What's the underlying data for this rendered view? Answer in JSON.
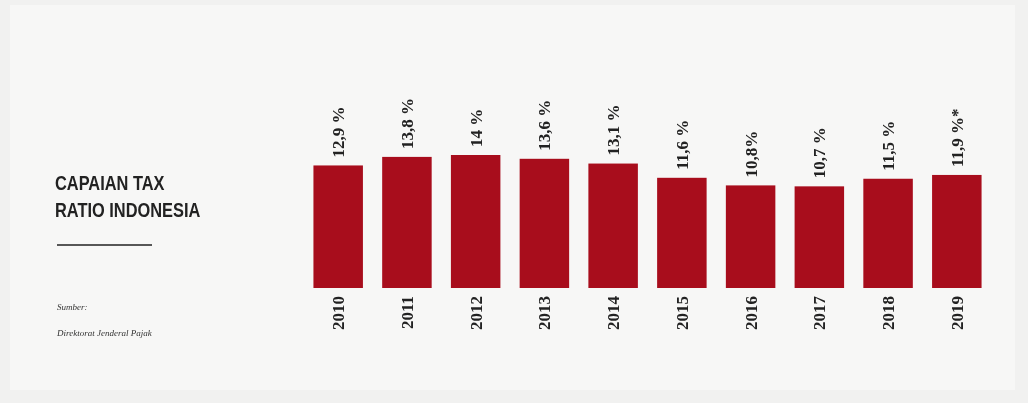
{
  "chart_data": {
    "type": "bar",
    "title": "CAPAIAN TAX RATIO INDONESIA",
    "annotations": [
      "Sumber:",
      "Direktorat Jenderal Pajak"
    ],
    "categories": [
      "2010",
      "2011",
      "2012",
      "2013",
      "2014",
      "2015",
      "2016",
      "2017",
      "2018",
      "2019"
    ],
    "values": [
      12.9,
      13.8,
      14,
      13.6,
      13.1,
      11.6,
      10.8,
      10.7,
      11.5,
      11.9
    ],
    "value_labels": [
      "12,9 %",
      "13,8 %",
      "14 %",
      "13,6 %",
      "13,1 %",
      "11,6 %",
      "10,8%",
      "10,7 %",
      "11,5 %",
      "11,9 %*"
    ],
    "color": "#a80d1c"
  }
}
